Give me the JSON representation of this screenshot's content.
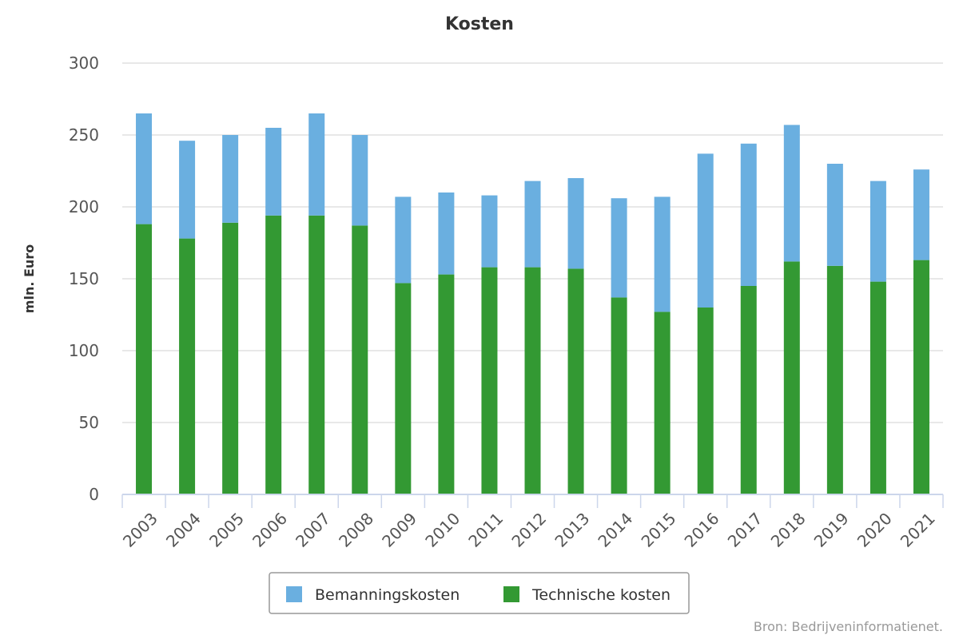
{
  "chart_data": {
    "type": "bar",
    "stacked": true,
    "title": "Kosten",
    "ylabel": "mln. Euro",
    "xlabel": "",
    "ylim": [
      0,
      300
    ],
    "yticks": [
      0,
      50,
      100,
      150,
      200,
      250,
      300
    ],
    "grid": true,
    "legend_position": "bottom-center",
    "categories": [
      "2003",
      "2004",
      "2005",
      "2006",
      "2007",
      "2008",
      "2009",
      "2010",
      "2011",
      "2012",
      "2013",
      "2014",
      "2015",
      "2016",
      "2017",
      "2018",
      "2019",
      "2020",
      "2021"
    ],
    "series": [
      {
        "name": "Technische kosten",
        "color": "#339933",
        "values": [
          188,
          178,
          189,
          194,
          194,
          187,
          147,
          153,
          158,
          158,
          157,
          137,
          127,
          130,
          145,
          162,
          159,
          148,
          163
        ]
      },
      {
        "name": "Bemanningskosten",
        "color": "#6aafe0",
        "values": [
          77,
          68,
          61,
          61,
          71,
          63,
          60,
          57,
          50,
          60,
          63,
          69,
          80,
          107,
          99,
          95,
          71,
          70,
          63
        ]
      }
    ],
    "legend_order": [
      "Bemanningskosten",
      "Technische kosten"
    ],
    "credit": "Bron: Bedrijveninformatienet."
  }
}
